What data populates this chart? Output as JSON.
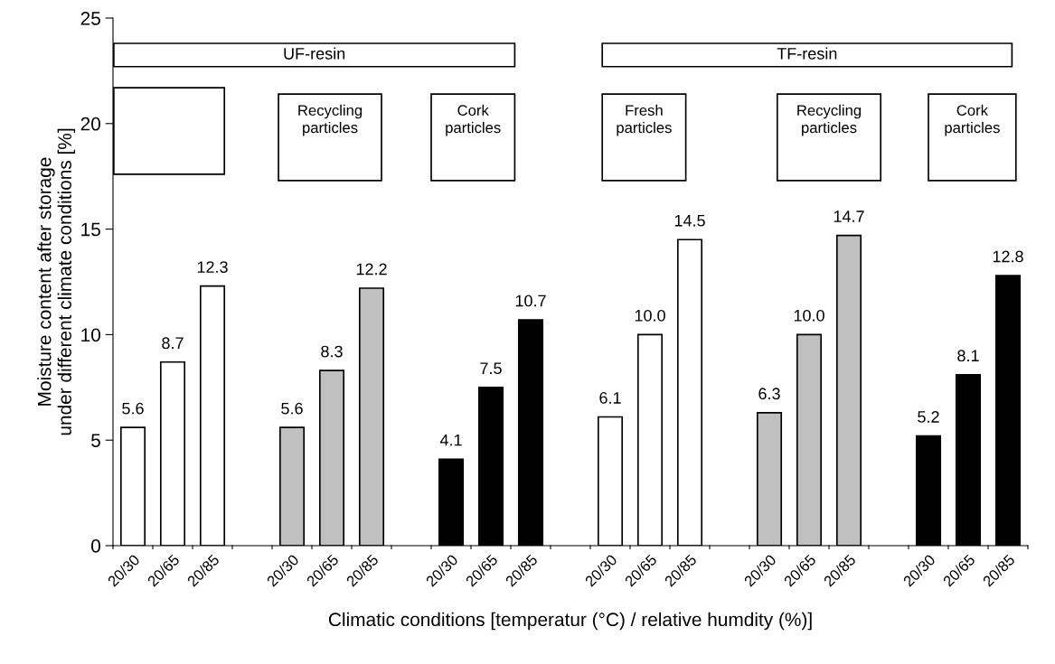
{
  "chart_data": {
    "type": "bar",
    "xlabel": "Climatic conditions [temperatur (°C) / relative humdity (%)]",
    "ylabel": "Moisture content after storage\nunder different climate conditions [%]",
    "categories": [
      "20/30",
      "20/65",
      "20/85",
      null,
      "20/30",
      "20/65",
      "20/85",
      null,
      "20/30",
      "20/65",
      "20/85",
      null,
      "20/30",
      "20/65",
      "20/85",
      null,
      "20/30",
      "20/65",
      "20/85",
      null,
      "20/30",
      "20/65",
      "20/85"
    ],
    "values": [
      5.6,
      8.7,
      12.3,
      null,
      5.6,
      8.3,
      12.2,
      null,
      4.1,
      7.5,
      10.7,
      null,
      6.1,
      10.0,
      14.5,
      null,
      6.3,
      10.0,
      14.7,
      null,
      5.2,
      8.1,
      12.8
    ],
    "value_labels": [
      "5.6",
      "8.7",
      "12.3",
      null,
      "5.6",
      "8.3",
      "12.2",
      null,
      "4.1",
      "7.5",
      "10.7",
      null,
      "6.1",
      "10.0",
      "14.5",
      null,
      "6.3",
      "10.0",
      "14.7",
      null,
      "5.2",
      "8.1",
      "12.8"
    ],
    "colors": [
      "#ffffff",
      "#ffffff",
      "#ffffff",
      null,
      "#c0c0c0",
      "#c0c0c0",
      "#c0c0c0",
      null,
      "#000000",
      "#000000",
      "#000000",
      null,
      "#ffffff",
      "#ffffff",
      "#ffffff",
      null,
      "#c0c0c0",
      "#c0c0c0",
      "#c0c0c0",
      null,
      "#000000",
      "#000000",
      "#000000"
    ],
    "ylim": [
      0,
      25
    ],
    "yticks": [
      0,
      5,
      10,
      15,
      20,
      25
    ],
    "grid": false,
    "legend": false,
    "annotations": [
      "UF-resin",
      "TF-resin",
      "Recycling\nparticles",
      "Cork\nparticles",
      "Fresh\nparticles",
      "Recycling\nparticles",
      "Cork\nparticles"
    ]
  }
}
